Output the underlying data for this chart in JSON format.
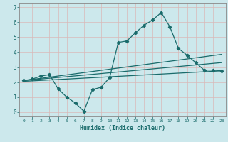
{
  "xlabel": "Humidex (Indice chaleur)",
  "background_color": "#cce8ec",
  "grid_color": "#b8d8dc",
  "line_color": "#1a6b6b",
  "x_ticks": [
    0,
    1,
    2,
    3,
    4,
    5,
    6,
    7,
    8,
    9,
    10,
    11,
    12,
    13,
    14,
    15,
    16,
    17,
    18,
    19,
    20,
    21,
    22,
    23
  ],
  "xlim": [
    -0.5,
    23.5
  ],
  "ylim": [
    -0.3,
    7.3
  ],
  "y_ticks": [
    0,
    1,
    2,
    3,
    4,
    5,
    6,
    7
  ],
  "series1_x": [
    0,
    1,
    2,
    3,
    4,
    5,
    6,
    7,
    8,
    9,
    10,
    11,
    12,
    13,
    14,
    15,
    16,
    17,
    18,
    19,
    20,
    21,
    22,
    23
  ],
  "series1_y": [
    2.1,
    2.2,
    2.4,
    2.5,
    1.55,
    1.0,
    0.6,
    0.05,
    1.5,
    1.65,
    2.3,
    4.65,
    4.75,
    5.3,
    5.8,
    6.15,
    6.65,
    5.7,
    4.25,
    3.8,
    3.3,
    2.8,
    2.8,
    2.75
  ],
  "series2_x": [
    0,
    23
  ],
  "series2_y": [
    2.1,
    3.85
  ],
  "series3_x": [
    0,
    23
  ],
  "series3_y": [
    2.05,
    2.75
  ],
  "series4_x": [
    0,
    23
  ],
  "series4_y": [
    2.1,
    3.3
  ]
}
